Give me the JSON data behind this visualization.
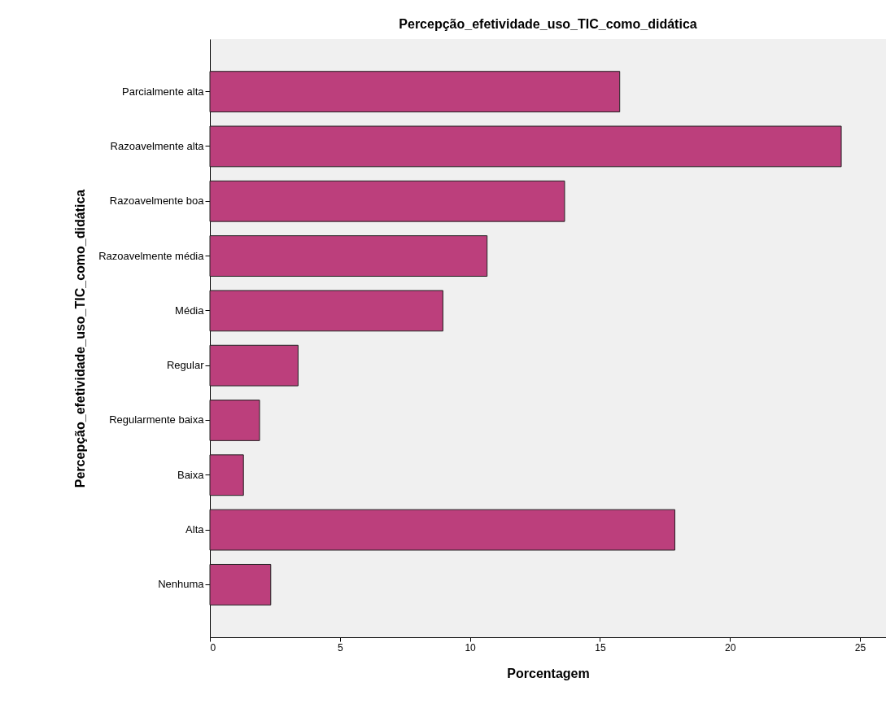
{
  "chart_data": {
    "type": "bar",
    "orientation": "horizontal",
    "title": "Percepção_efetividade_uso_TIC_como_didática",
    "xlabel": "Porcentagem",
    "ylabel": "Percepção_efetividade_uso_TIC_como_didática",
    "categories": [
      "Parcialmente alta",
      "Razoavelmente alta",
      "Razoavelmente boa",
      "Razoavelmente média",
      "Média",
      "Regular",
      "Regularmente baixa",
      "Baixa",
      "Alta",
      "Nenhuma"
    ],
    "values": [
      15.76,
      24.28,
      13.64,
      10.66,
      8.96,
      3.39,
      1.91,
      1.29,
      17.88,
      2.34
    ],
    "color": "#bc3f7c",
    "xlim": [
      0,
      26
    ],
    "xticks": [
      0,
      5,
      10,
      15,
      20,
      25
    ],
    "grid": false
  }
}
